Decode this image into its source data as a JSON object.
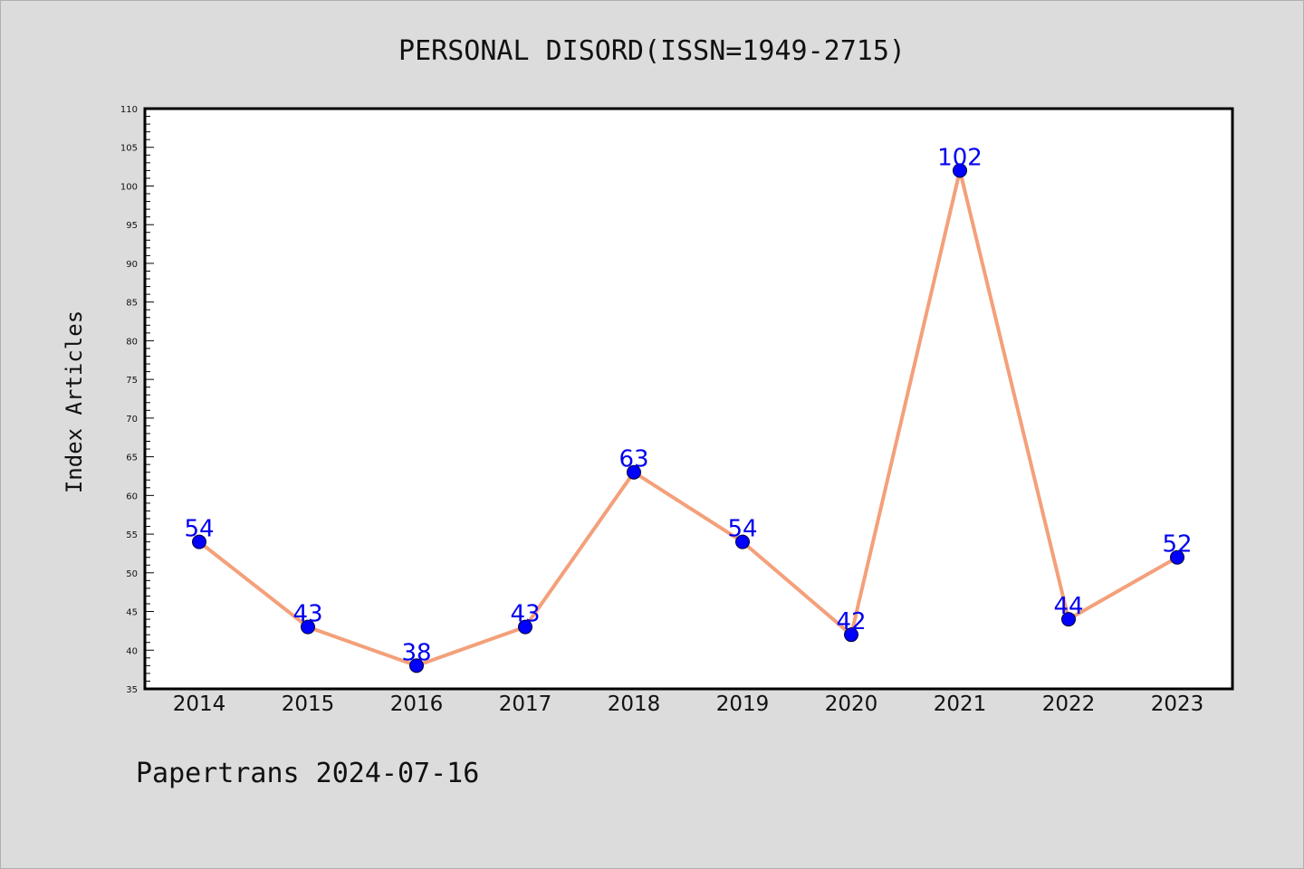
{
  "chart_data": {
    "type": "line",
    "title": "PERSONAL DISORD(ISSN=1949-2715)",
    "ylabel": "Index Articles",
    "xlabel": "",
    "categories": [
      "2014",
      "2015",
      "2016",
      "2017",
      "2018",
      "2019",
      "2020",
      "2021",
      "2022",
      "2023"
    ],
    "values": [
      54,
      43,
      38,
      43,
      63,
      54,
      42,
      102,
      44,
      52
    ],
    "ylim": [
      35,
      110
    ],
    "ytick_step": 5,
    "grid": false,
    "line_color": "#f4a07a",
    "marker_color": "#0000ff",
    "label_color": "#0000ee",
    "footer": "Papertrans 2024-07-16"
  }
}
